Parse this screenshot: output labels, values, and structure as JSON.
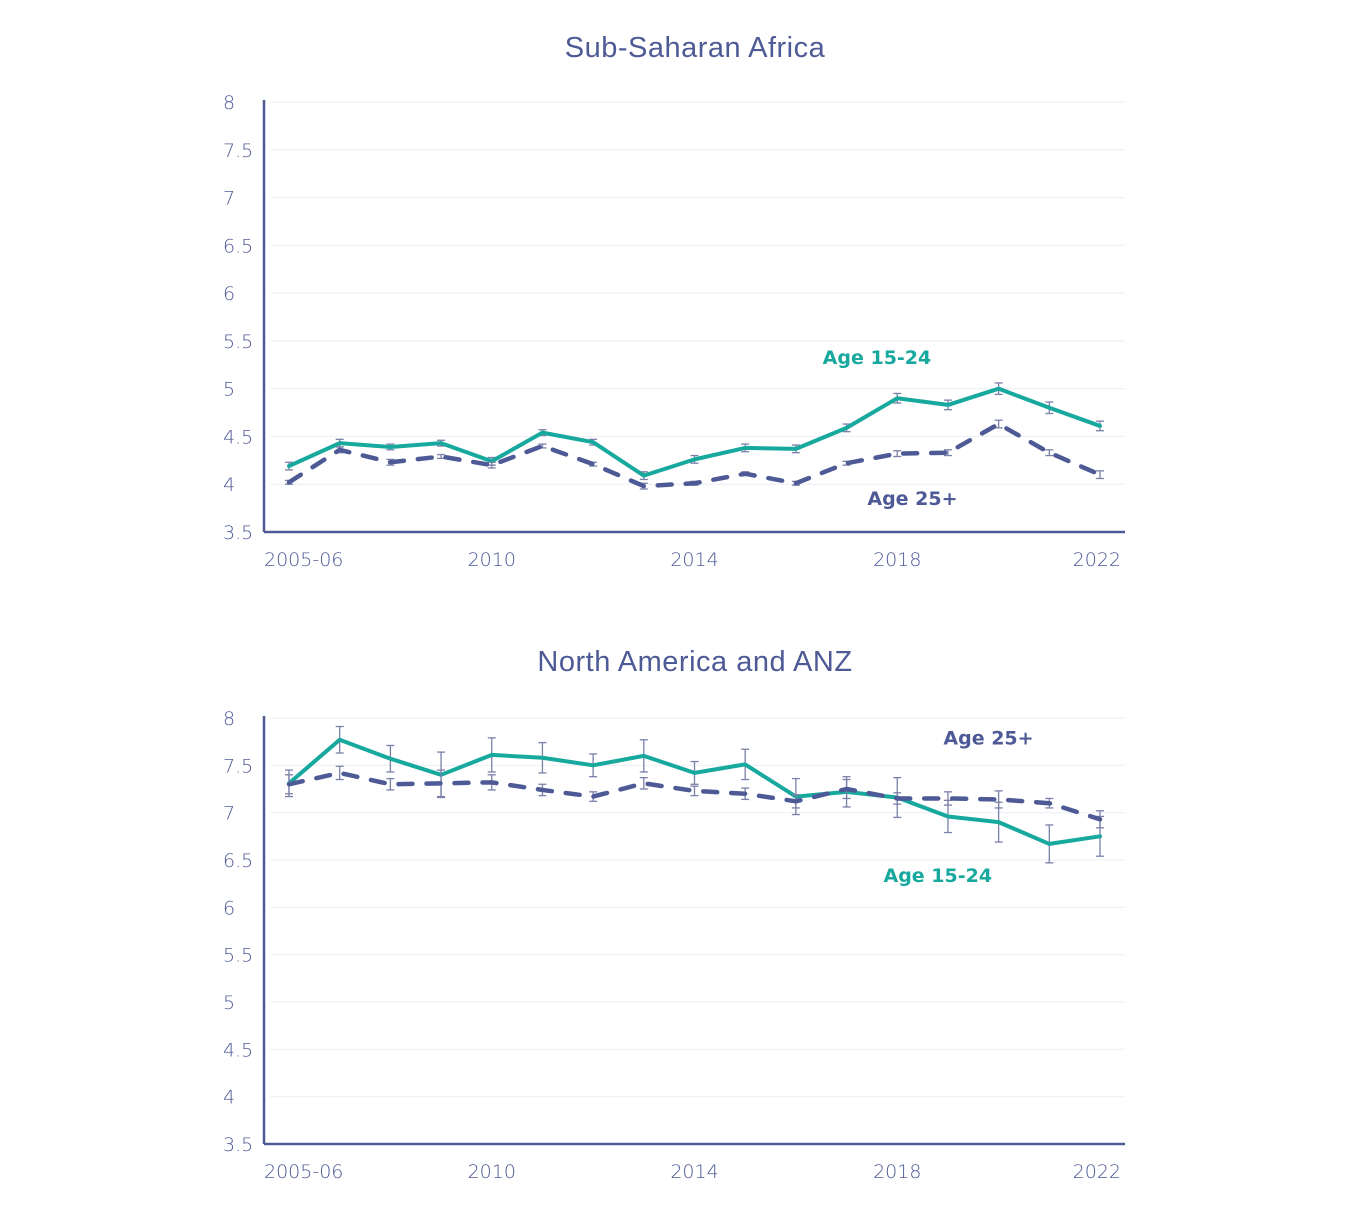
{
  "colors": {
    "youth": "#17a89e",
    "adult": "#4e5a96",
    "axis": "#4e5a96",
    "grid": "#eef0f4",
    "errorbar": "#7a80a8"
  },
  "chart_data": [
    {
      "type": "line",
      "title": "Sub-Saharan Africa",
      "xlabel": "",
      "ylabel": "",
      "ylim": [
        3.5,
        8
      ],
      "yticks": [
        "3.5",
        "4",
        "4.5",
        "5",
        "5.5",
        "6",
        "6.5",
        "7",
        "7.5",
        "8"
      ],
      "grid": true,
      "x": [
        2006,
        2007,
        2008,
        2009,
        2010,
        2011,
        2012,
        2013,
        2014,
        2015,
        2016,
        2017,
        2018,
        2019,
        2020,
        2021,
        2022
      ],
      "xtick_labels": [
        {
          "x": 2006,
          "label": "2005-06"
        },
        {
          "x": 2010,
          "label": "2010"
        },
        {
          "x": 2014,
          "label": "2014"
        },
        {
          "x": 2018,
          "label": "2018"
        },
        {
          "x": 2022,
          "label": "2022"
        }
      ],
      "series": [
        {
          "name": "Age 15-24",
          "style": "solid",
          "values": [
            4.19,
            4.43,
            4.39,
            4.43,
            4.24,
            4.54,
            4.44,
            4.09,
            4.26,
            4.38,
            4.37,
            4.59,
            4.9,
            4.83,
            5.0,
            4.8,
            4.61
          ],
          "errors": [
            0.04,
            0.04,
            0.03,
            0.03,
            0.04,
            0.03,
            0.03,
            0.04,
            0.04,
            0.04,
            0.04,
            0.04,
            0.05,
            0.05,
            0.06,
            0.06,
            0.05
          ],
          "label_anchor_x": 2017.6,
          "label_value": 5.26
        },
        {
          "name": "Age 25+",
          "style": "dashed",
          "values": [
            4.02,
            4.36,
            4.23,
            4.29,
            4.2,
            4.4,
            4.21,
            3.98,
            4.01,
            4.11,
            4.01,
            4.22,
            4.32,
            4.33,
            4.63,
            4.33,
            4.1
          ],
          "errors": [
            0.02,
            0.03,
            0.03,
            0.02,
            0.03,
            0.02,
            0.02,
            0.03,
            0.02,
            0.02,
            0.02,
            0.02,
            0.03,
            0.03,
            0.04,
            0.03,
            0.04
          ],
          "label_anchor_x": 2018.3,
          "label_value": 3.78
        }
      ]
    },
    {
      "type": "line",
      "title": "North America and ANZ",
      "xlabel": "",
      "ylabel": "",
      "ylim": [
        3.5,
        8
      ],
      "yticks": [
        "3.5",
        "4",
        "4.5",
        "5",
        "5.5",
        "6",
        "6.5",
        "7",
        "7.5",
        "8"
      ],
      "grid": true,
      "x": [
        2006,
        2007,
        2008,
        2009,
        2010,
        2011,
        2012,
        2013,
        2014,
        2015,
        2016,
        2017,
        2018,
        2019,
        2020,
        2021,
        2022
      ],
      "xtick_labels": [
        {
          "x": 2006,
          "label": "2005-06"
        },
        {
          "x": 2010,
          "label": "2010"
        },
        {
          "x": 2014,
          "label": "2014"
        },
        {
          "x": 2018,
          "label": "2018"
        },
        {
          "x": 2022,
          "label": "2022"
        }
      ],
      "series": [
        {
          "name": "Age 15-24",
          "style": "solid",
          "values": [
            7.31,
            7.77,
            7.57,
            7.4,
            7.61,
            7.58,
            7.5,
            7.6,
            7.42,
            7.51,
            7.17,
            7.22,
            7.16,
            6.96,
            6.9,
            6.67,
            6.75
          ],
          "errors": [
            0.14,
            0.14,
            0.14,
            0.24,
            0.18,
            0.16,
            0.12,
            0.17,
            0.12,
            0.16,
            0.19,
            0.16,
            0.21,
            0.17,
            0.21,
            0.2,
            0.21
          ],
          "label_anchor_x": 2018.8,
          "label_value": 6.27
        },
        {
          "name": "Age 25+",
          "style": "dashed",
          "values": [
            7.3,
            7.42,
            7.3,
            7.31,
            7.32,
            7.24,
            7.17,
            7.31,
            7.23,
            7.2,
            7.12,
            7.25,
            7.15,
            7.15,
            7.14,
            7.1,
            6.93
          ],
          "errors": [
            0.1,
            0.07,
            0.06,
            0.14,
            0.08,
            0.06,
            0.05,
            0.06,
            0.05,
            0.06,
            0.07,
            0.1,
            0.06,
            0.07,
            0.09,
            0.05,
            0.09
          ],
          "label_anchor_x": 2019.8,
          "label_value": 7.72
        }
      ]
    }
  ]
}
